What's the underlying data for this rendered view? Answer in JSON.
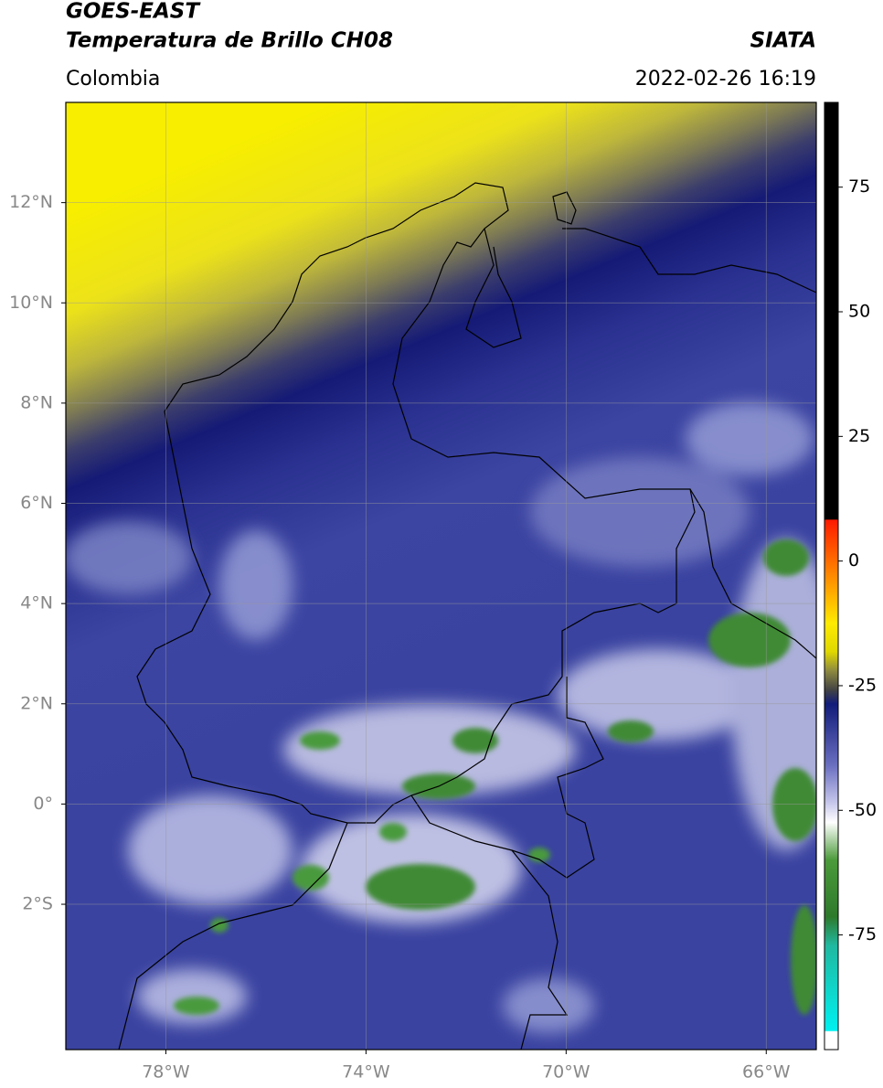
{
  "header": {
    "title": "GOES-EAST",
    "product": "Temperatura de Brillo CH08",
    "source": "SIATA",
    "region": "Colombia",
    "timestamp": "2022-02-26 16:19"
  },
  "map": {
    "xlim": [
      -80,
      -65
    ],
    "ylim": [
      -4.9,
      14
    ],
    "xticks": [
      {
        "value": -78,
        "label": "78°W"
      },
      {
        "value": -74,
        "label": "74°W"
      },
      {
        "value": -70,
        "label": "70°W"
      },
      {
        "value": -66,
        "label": "66°W"
      }
    ],
    "yticks": [
      {
        "value": 12,
        "label": "12°N"
      },
      {
        "value": 10,
        "label": "10°N"
      },
      {
        "value": 8,
        "label": "8°N"
      },
      {
        "value": 6,
        "label": "6°N"
      },
      {
        "value": 4,
        "label": "4°N"
      },
      {
        "value": 2,
        "label": "2°N"
      },
      {
        "value": 0,
        "label": "0°"
      },
      {
        "value": -2,
        "label": "2°S"
      }
    ],
    "grid": true
  },
  "colorbar": {
    "lim": [
      -98,
      92
    ],
    "ticks": [
      75,
      50,
      25,
      0,
      -25,
      -50,
      -75
    ]
  }
}
